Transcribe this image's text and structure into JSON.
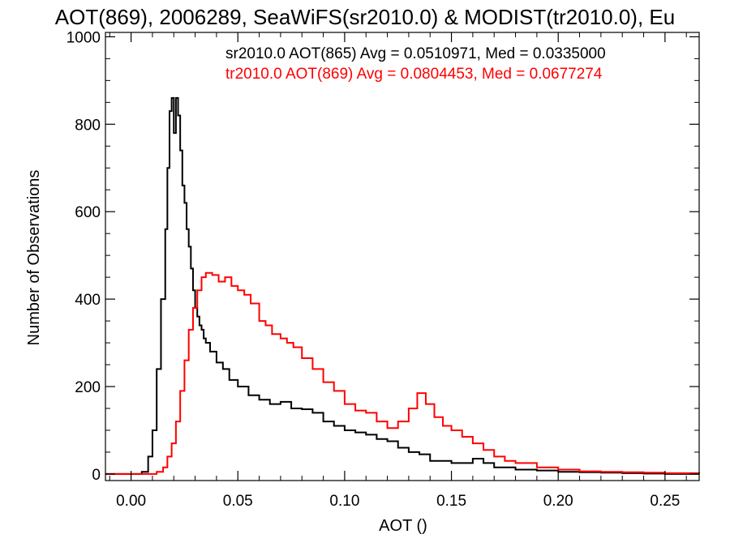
{
  "chart_data": {
    "type": "line",
    "title": "AOT(869), 2006289, SeaWiFS(sr2010.0) & MODIST(tr2010.0), Eu",
    "xlabel": "AOT ()",
    "ylabel": "Number of Observations",
    "xlim": [
      -0.012,
      0.266
    ],
    "ylim": [
      -15,
      1010
    ],
    "xticks": [
      0.0,
      0.05,
      0.1,
      0.15,
      0.2,
      0.25
    ],
    "xtick_labels": [
      "0.00",
      "0.05",
      "0.10",
      "0.15",
      "0.20",
      "0.25"
    ],
    "yticks": [
      0,
      200,
      400,
      600,
      800,
      1000
    ],
    "ytick_labels": [
      "0",
      "200",
      "400",
      "600",
      "800",
      "1000"
    ],
    "style": "step",
    "grid": false,
    "series": [
      {
        "name": "sr2010.0",
        "color": "#000000",
        "stats_label": "sr2010.0 AOT(865) Avg = 0.0510971, Med = 0.0335000",
        "x": [
          -0.012,
          0.0,
          0.005,
          0.008,
          0.01,
          0.012,
          0.014,
          0.016,
          0.017,
          0.018,
          0.019,
          0.02,
          0.021,
          0.022,
          0.023,
          0.024,
          0.025,
          0.026,
          0.027,
          0.028,
          0.029,
          0.03,
          0.031,
          0.032,
          0.033,
          0.034,
          0.035,
          0.037,
          0.04,
          0.043,
          0.046,
          0.05,
          0.055,
          0.06,
          0.065,
          0.07,
          0.075,
          0.08,
          0.085,
          0.09,
          0.095,
          0.1,
          0.105,
          0.11,
          0.115,
          0.12,
          0.125,
          0.13,
          0.135,
          0.14,
          0.15,
          0.16,
          0.165,
          0.17,
          0.18,
          0.19,
          0.2,
          0.21,
          0.22,
          0.23,
          0.24,
          0.25,
          0.266
        ],
        "y": [
          0,
          0,
          5,
          40,
          100,
          240,
          400,
          560,
          700,
          830,
          860,
          780,
          860,
          820,
          740,
          660,
          620,
          560,
          520,
          470,
          420,
          380,
          360,
          340,
          330,
          310,
          300,
          280,
          255,
          240,
          215,
          200,
          180,
          170,
          160,
          165,
          150,
          148,
          140,
          120,
          110,
          100,
          95,
          90,
          80,
          75,
          60,
          50,
          45,
          30,
          25,
          35,
          25,
          15,
          10,
          8,
          5,
          4,
          3,
          2,
          1,
          0,
          0
        ]
      },
      {
        "name": "tr2010.0",
        "color": "#ff0000",
        "stats_label": "tr2010.0 AOT(869) Avg = 0.0804453, Med = 0.0677274",
        "x": [
          -0.012,
          0.012,
          0.015,
          0.017,
          0.019,
          0.021,
          0.023,
          0.025,
          0.027,
          0.029,
          0.031,
          0.033,
          0.035,
          0.038,
          0.041,
          0.044,
          0.047,
          0.05,
          0.053,
          0.056,
          0.06,
          0.063,
          0.066,
          0.07,
          0.073,
          0.076,
          0.08,
          0.085,
          0.09,
          0.095,
          0.1,
          0.105,
          0.11,
          0.115,
          0.12,
          0.125,
          0.13,
          0.134,
          0.138,
          0.142,
          0.146,
          0.15,
          0.155,
          0.16,
          0.165,
          0.17,
          0.175,
          0.18,
          0.19,
          0.2,
          0.21,
          0.22,
          0.23,
          0.24,
          0.25,
          0.266
        ],
        "y": [
          0,
          5,
          15,
          40,
          70,
          120,
          190,
          260,
          330,
          380,
          420,
          450,
          460,
          455,
          440,
          450,
          430,
          420,
          410,
          390,
          350,
          340,
          320,
          310,
          300,
          290,
          265,
          240,
          210,
          190,
          160,
          145,
          140,
          120,
          105,
          120,
          150,
          185,
          160,
          130,
          110,
          100,
          85,
          70,
          55,
          40,
          30,
          25,
          15,
          10,
          6,
          5,
          4,
          3,
          2,
          0
        ]
      }
    ]
  }
}
